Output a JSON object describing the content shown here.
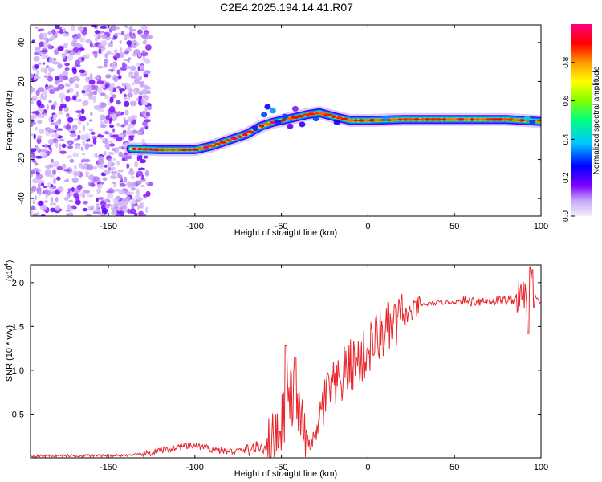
{
  "title": "C2E4.2025.194.14.41.R07",
  "chart_data": [
    {
      "type": "heatmap",
      "xlabel": "Height of straight line (km)",
      "ylabel": "Frequency (Hz)",
      "xlim": [
        -195,
        100
      ],
      "ylim": [
        -49,
        49
      ],
      "xticks": [
        -150,
        -100,
        -50,
        0,
        50,
        100
      ],
      "yticks": [
        -40,
        -20,
        0,
        20,
        40
      ],
      "colorbar": {
        "label": "Normalized spectral amplitude",
        "range": [
          0,
          1
        ],
        "ticks": [
          "0.0",
          "0.2",
          "0.4",
          "0.6",
          "0.8"
        ],
        "colors": [
          "#f4ecfb",
          "#a070f0",
          "#7a00ff",
          "#0000ff",
          "#00c8ff",
          "#00ff7f",
          "#7fff00",
          "#ffff00",
          "#ff9900",
          "#ff0000",
          "#ff0080"
        ]
      },
      "noise_region": {
        "x_range": [
          -195,
          -132
        ],
        "y_range": [
          -49,
          49
        ]
      },
      "ridge": [
        {
          "x": -137,
          "y": -14.5
        },
        {
          "x": -120,
          "y": -15
        },
        {
          "x": -100,
          "y": -15
        },
        {
          "x": -90,
          "y": -13
        },
        {
          "x": -80,
          "y": -10
        },
        {
          "x": -70,
          "y": -7
        },
        {
          "x": -62,
          "y": -3
        },
        {
          "x": -55,
          "y": -1
        },
        {
          "x": -45,
          "y": 1
        },
        {
          "x": -35,
          "y": 3
        },
        {
          "x": -28,
          "y": 4
        },
        {
          "x": -20,
          "y": 2
        },
        {
          "x": -10,
          "y": 0
        },
        {
          "x": 0,
          "y": 0
        },
        {
          "x": 20,
          "y": 0.5
        },
        {
          "x": 50,
          "y": 0.5
        },
        {
          "x": 80,
          "y": 0.5
        },
        {
          "x": 100,
          "y": -0.5
        }
      ]
    },
    {
      "type": "line",
      "xlabel": "Height of straight line (km)",
      "ylabel": "SNR (10 * v/v)",
      "yscale_label": "(x10",
      "yscale_exponent": "4",
      "xlim": [
        -195,
        100
      ],
      "ylim": [
        0,
        22000
      ],
      "xticks": [
        -150,
        -100,
        -50,
        0,
        50,
        100
      ],
      "yticks": [
        {
          "value": 5000,
          "label": "0.5"
        },
        {
          "value": 10000,
          "label": "1.0"
        },
        {
          "value": 15000,
          "label": "1.5"
        },
        {
          "value": 20000,
          "label": "2.0"
        }
      ],
      "color": "#e8262b",
      "series": [
        {
          "x": [
            -195,
            -180,
            -160,
            -140,
            -130,
            -120,
            -110,
            -100,
            -90,
            -80,
            -70,
            -60,
            -55,
            -50,
            -46,
            -42,
            -38,
            -34,
            -30,
            -26,
            -22,
            -18,
            -14,
            -10,
            -6,
            -2,
            2,
            6,
            10,
            15,
            20,
            25,
            30,
            40,
            50,
            60,
            70,
            80,
            88,
            92,
            94,
            96,
            100
          ],
          "y": [
            200,
            250,
            250,
            300,
            400,
            800,
            1200,
            1400,
            1000,
            700,
            900,
            1300,
            2000,
            4000,
            7000,
            6500,
            3500,
            1500,
            2500,
            6000,
            8000,
            7800,
            9500,
            10500,
            11000,
            11500,
            13000,
            13800,
            14500,
            15000,
            16000,
            16500,
            17400,
            17700,
            17800,
            17900,
            17900,
            18000,
            18200,
            19000,
            22000,
            18500,
            17800
          ]
        }
      ]
    }
  ]
}
